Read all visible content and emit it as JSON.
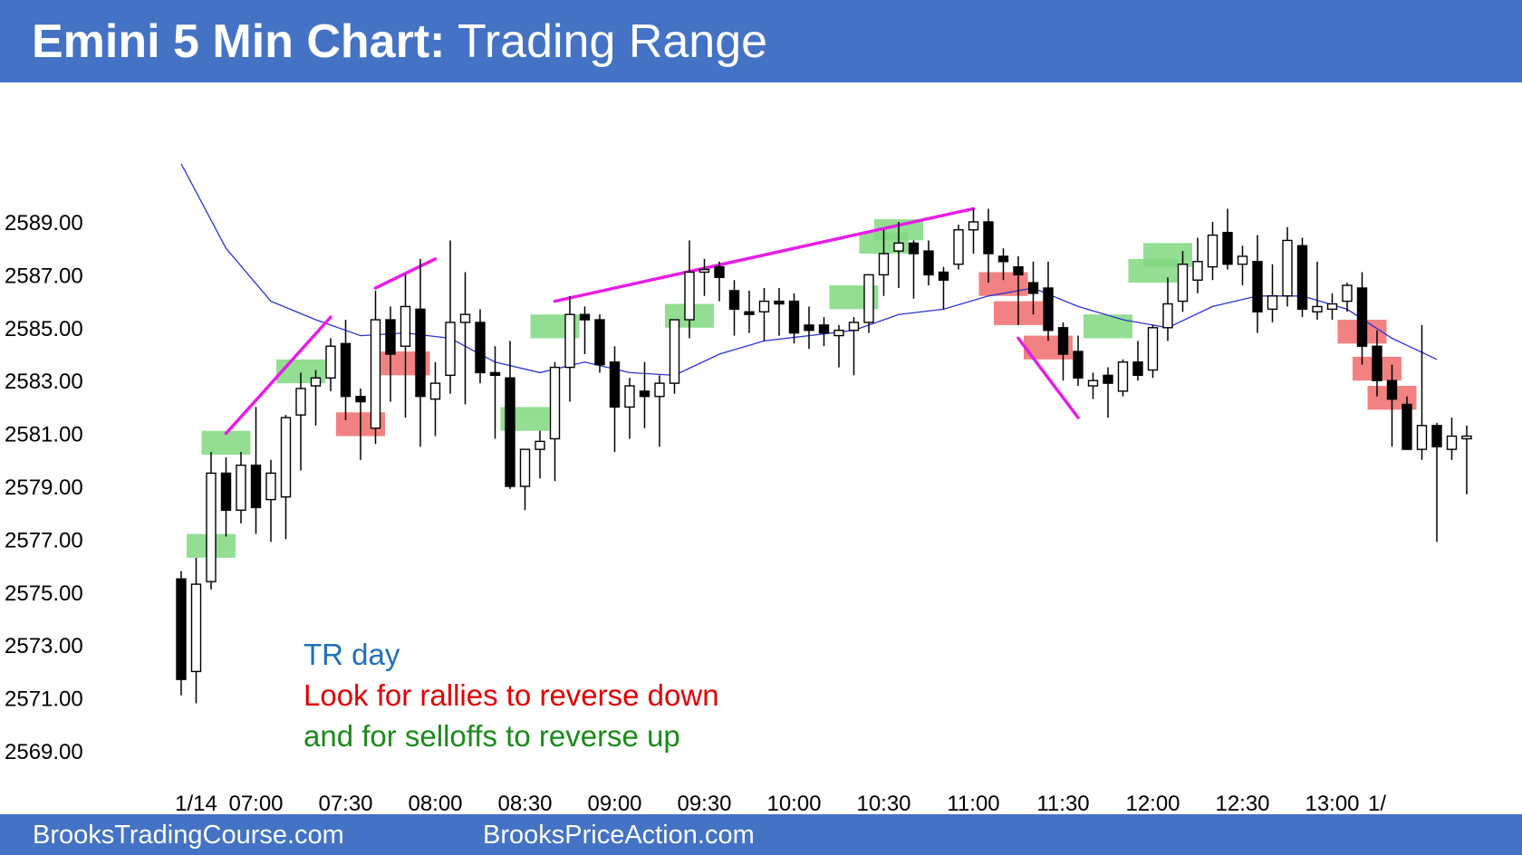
{
  "header": {
    "title_bold": "Emini 5 Min Chart:",
    "title_rest": " Trading Range"
  },
  "footer": {
    "left_link": "BrooksTradingCourse.com",
    "right_link": "BrooksPriceAction.com"
  },
  "notes": {
    "line1": "TR day",
    "line2": "Look for rallies to reverse down",
    "line3": "and for selloffs to reverse up"
  },
  "colors": {
    "header_bg": "#4472c4",
    "bull_body": "#ffffff",
    "bear_body": "#000000",
    "ema": "#2b33d6",
    "trendline": "#e61ee6",
    "green_box": "#80d880",
    "red_box": "#f06c6c",
    "note1": "#1f6fbf",
    "note2": "#e00000",
    "note3": "#1a8a1a"
  },
  "chart_data": {
    "type": "candlestick",
    "title": "Emini 5 Min Chart: Trading Range",
    "ylim": [
      2567.5,
      2591.5
    ],
    "yticks": [
      2589,
      2587,
      2585,
      2583,
      2581,
      2579,
      2577,
      2575,
      2573,
      2571,
      2569
    ],
    "ytick_labels": [
      "2589.00",
      "2587.00",
      "2585.00",
      "2583.00",
      "2581.00",
      "2579.00",
      "2577.00",
      "2575.00",
      "2573.00",
      "2571.00",
      "2569.00"
    ],
    "xtick_labels": [
      "1/14",
      "07:00",
      "07:30",
      "08:00",
      "08:30",
      "09:00",
      "09:30",
      "10:00",
      "10:30",
      "11:00",
      "11:30",
      "12:00",
      "12:30",
      "13:00",
      "1/"
    ],
    "xtick_bars": [
      1,
      5,
      11,
      17,
      23,
      29,
      35,
      41,
      47,
      53,
      59,
      65,
      71,
      77,
      80
    ],
    "grid": false,
    "candles": [
      {
        "o": 2575.5,
        "h": 2575.8,
        "l": 2571.1,
        "c": 2571.7
      },
      {
        "o": 2572.0,
        "h": 2576.3,
        "l": 2570.8,
        "c": 2575.3
      },
      {
        "o": 2575.4,
        "h": 2580.3,
        "l": 2575.1,
        "c": 2579.5
      },
      {
        "o": 2579.5,
        "h": 2580.1,
        "l": 2577.1,
        "c": 2578.1
      },
      {
        "o": 2578.1,
        "h": 2580.3,
        "l": 2577.6,
        "c": 2579.8
      },
      {
        "o": 2579.8,
        "h": 2582.0,
        "l": 2577.2,
        "c": 2578.2
      },
      {
        "o": 2578.5,
        "h": 2580.0,
        "l": 2576.9,
        "c": 2579.5
      },
      {
        "o": 2578.6,
        "h": 2581.7,
        "l": 2577.0,
        "c": 2581.6
      },
      {
        "o": 2581.7,
        "h": 2583.3,
        "l": 2579.6,
        "c": 2582.7
      },
      {
        "o": 2582.8,
        "h": 2583.4,
        "l": 2581.3,
        "c": 2583.1
      },
      {
        "o": 2583.1,
        "h": 2584.6,
        "l": 2582.6,
        "c": 2584.3
      },
      {
        "o": 2584.4,
        "h": 2585.3,
        "l": 2581.5,
        "c": 2582.4
      },
      {
        "o": 2582.4,
        "h": 2582.7,
        "l": 2580.0,
        "c": 2582.2
      },
      {
        "o": 2581.2,
        "h": 2586.4,
        "l": 2580.6,
        "c": 2585.3
      },
      {
        "o": 2585.3,
        "h": 2585.8,
        "l": 2582.2,
        "c": 2584.0
      },
      {
        "o": 2584.3,
        "h": 2587.0,
        "l": 2581.6,
        "c": 2585.8
      },
      {
        "o": 2585.7,
        "h": 2587.6,
        "l": 2580.5,
        "c": 2582.4
      },
      {
        "o": 2582.3,
        "h": 2583.7,
        "l": 2580.9,
        "c": 2582.9
      },
      {
        "o": 2583.2,
        "h": 2588.3,
        "l": 2582.5,
        "c": 2585.2
      },
      {
        "o": 2585.2,
        "h": 2587.1,
        "l": 2582.1,
        "c": 2585.5
      },
      {
        "o": 2585.2,
        "h": 2585.7,
        "l": 2582.9,
        "c": 2583.3
      },
      {
        "o": 2583.3,
        "h": 2584.3,
        "l": 2580.8,
        "c": 2583.2
      },
      {
        "o": 2583.1,
        "h": 2584.5,
        "l": 2578.9,
        "c": 2579.0
      },
      {
        "o": 2579.0,
        "h": 2580.2,
        "l": 2578.1,
        "c": 2580.4
      },
      {
        "o": 2580.4,
        "h": 2581.1,
        "l": 2579.3,
        "c": 2580.7
      },
      {
        "o": 2580.8,
        "h": 2583.7,
        "l": 2579.2,
        "c": 2583.5
      },
      {
        "o": 2583.5,
        "h": 2586.2,
        "l": 2582.2,
        "c": 2585.5
      },
      {
        "o": 2585.5,
        "h": 2585.8,
        "l": 2584.0,
        "c": 2585.3
      },
      {
        "o": 2585.3,
        "h": 2585.5,
        "l": 2583.3,
        "c": 2583.6
      },
      {
        "o": 2583.7,
        "h": 2584.3,
        "l": 2580.3,
        "c": 2582.0
      },
      {
        "o": 2582.0,
        "h": 2583.1,
        "l": 2580.8,
        "c": 2582.8
      },
      {
        "o": 2582.6,
        "h": 2583.7,
        "l": 2581.2,
        "c": 2582.4
      },
      {
        "o": 2582.4,
        "h": 2583.2,
        "l": 2580.5,
        "c": 2582.9
      },
      {
        "o": 2582.9,
        "h": 2585.2,
        "l": 2582.5,
        "c": 2585.3
      },
      {
        "o": 2585.3,
        "h": 2588.3,
        "l": 2584.6,
        "c": 2587.1
      },
      {
        "o": 2587.1,
        "h": 2587.6,
        "l": 2586.2,
        "c": 2587.2
      },
      {
        "o": 2587.3,
        "h": 2587.5,
        "l": 2586.0,
        "c": 2586.9
      },
      {
        "o": 2586.4,
        "h": 2586.8,
        "l": 2584.7,
        "c": 2585.7
      },
      {
        "o": 2585.6,
        "h": 2586.4,
        "l": 2584.8,
        "c": 2585.5
      },
      {
        "o": 2585.6,
        "h": 2586.5,
        "l": 2584.5,
        "c": 2586.0
      },
      {
        "o": 2586.0,
        "h": 2586.5,
        "l": 2584.7,
        "c": 2585.9
      },
      {
        "o": 2586.0,
        "h": 2586.3,
        "l": 2584.4,
        "c": 2584.8
      },
      {
        "o": 2585.1,
        "h": 2585.8,
        "l": 2584.2,
        "c": 2584.9
      },
      {
        "o": 2585.1,
        "h": 2585.4,
        "l": 2584.3,
        "c": 2584.8
      },
      {
        "o": 2584.7,
        "h": 2585.1,
        "l": 2583.5,
        "c": 2584.9
      },
      {
        "o": 2584.9,
        "h": 2585.4,
        "l": 2583.2,
        "c": 2585.2
      },
      {
        "o": 2585.2,
        "h": 2587.0,
        "l": 2584.8,
        "c": 2587.0
      },
      {
        "o": 2587.0,
        "h": 2588.7,
        "l": 2586.2,
        "c": 2587.8
      },
      {
        "o": 2587.9,
        "h": 2589.0,
        "l": 2586.5,
        "c": 2588.2
      },
      {
        "o": 2588.2,
        "h": 2588.3,
        "l": 2586.1,
        "c": 2587.8
      },
      {
        "o": 2587.9,
        "h": 2588.3,
        "l": 2586.6,
        "c": 2587.0
      },
      {
        "o": 2587.1,
        "h": 2587.3,
        "l": 2585.7,
        "c": 2586.8
      },
      {
        "o": 2587.4,
        "h": 2588.9,
        "l": 2587.2,
        "c": 2588.7
      },
      {
        "o": 2588.7,
        "h": 2589.5,
        "l": 2587.8,
        "c": 2589.0
      },
      {
        "o": 2589.0,
        "h": 2589.5,
        "l": 2586.7,
        "c": 2587.8
      },
      {
        "o": 2587.7,
        "h": 2588.0,
        "l": 2586.8,
        "c": 2587.5
      },
      {
        "o": 2587.3,
        "h": 2587.7,
        "l": 2585.1,
        "c": 2587.0
      },
      {
        "o": 2586.7,
        "h": 2587.5,
        "l": 2585.5,
        "c": 2586.3
      },
      {
        "o": 2586.5,
        "h": 2587.5,
        "l": 2584.5,
        "c": 2584.9
      },
      {
        "o": 2585.0,
        "h": 2585.2,
        "l": 2583.0,
        "c": 2584.0
      },
      {
        "o": 2584.1,
        "h": 2584.7,
        "l": 2582.8,
        "c": 2583.1
      },
      {
        "o": 2582.8,
        "h": 2583.3,
        "l": 2582.3,
        "c": 2583.0
      },
      {
        "o": 2583.2,
        "h": 2583.5,
        "l": 2581.6,
        "c": 2582.9
      },
      {
        "o": 2582.6,
        "h": 2583.8,
        "l": 2582.4,
        "c": 2583.7
      },
      {
        "o": 2583.7,
        "h": 2584.5,
        "l": 2583.0,
        "c": 2583.2
      },
      {
        "o": 2583.4,
        "h": 2585.1,
        "l": 2583.1,
        "c": 2585.0
      },
      {
        "o": 2585.0,
        "h": 2586.9,
        "l": 2584.5,
        "c": 2585.9
      },
      {
        "o": 2586.0,
        "h": 2587.9,
        "l": 2585.6,
        "c": 2587.4
      },
      {
        "o": 2586.8,
        "h": 2588.4,
        "l": 2586.3,
        "c": 2587.5
      },
      {
        "o": 2587.3,
        "h": 2589.0,
        "l": 2586.8,
        "c": 2588.5
      },
      {
        "o": 2588.6,
        "h": 2589.5,
        "l": 2587.2,
        "c": 2587.4
      },
      {
        "o": 2587.4,
        "h": 2588.1,
        "l": 2586.6,
        "c": 2587.7
      },
      {
        "o": 2587.5,
        "h": 2588.5,
        "l": 2584.8,
        "c": 2585.6
      },
      {
        "o": 2585.7,
        "h": 2587.4,
        "l": 2585.2,
        "c": 2586.2
      },
      {
        "o": 2586.2,
        "h": 2588.8,
        "l": 2585.8,
        "c": 2588.3
      },
      {
        "o": 2588.1,
        "h": 2588.4,
        "l": 2585.4,
        "c": 2585.7
      },
      {
        "o": 2585.6,
        "h": 2587.5,
        "l": 2585.3,
        "c": 2585.8
      },
      {
        "o": 2585.7,
        "h": 2586.3,
        "l": 2585.3,
        "c": 2585.9
      },
      {
        "o": 2586.0,
        "h": 2586.7,
        "l": 2585.6,
        "c": 2586.6
      },
      {
        "o": 2586.5,
        "h": 2587.1,
        "l": 2583.6,
        "c": 2584.3
      },
      {
        "o": 2584.3,
        "h": 2584.9,
        "l": 2582.4,
        "c": 2583.0
      },
      {
        "o": 2583.0,
        "h": 2583.6,
        "l": 2580.5,
        "c": 2582.3
      },
      {
        "o": 2582.1,
        "h": 2582.4,
        "l": 2580.4,
        "c": 2580.4
      },
      {
        "o": 2580.4,
        "h": 2585.1,
        "l": 2580.0,
        "c": 2581.3
      },
      {
        "o": 2581.3,
        "h": 2581.4,
        "l": 2576.9,
        "c": 2580.5
      },
      {
        "o": 2580.4,
        "h": 2581.6,
        "l": 2580.0,
        "c": 2580.9
      },
      {
        "o": 2580.8,
        "h": 2581.3,
        "l": 2578.7,
        "c": 2580.9
      }
    ],
    "ema20": [
      [
        0,
        2591.2
      ],
      [
        3,
        2588.0
      ],
      [
        6,
        2586.0
      ],
      [
        9,
        2585.3
      ],
      [
        12,
        2584.7
      ],
      [
        15,
        2584.8
      ],
      [
        18,
        2584.6
      ],
      [
        21,
        2583.7
      ],
      [
        24,
        2583.3
      ],
      [
        27,
        2583.7
      ],
      [
        30,
        2583.3
      ],
      [
        33,
        2583.2
      ],
      [
        36,
        2584.0
      ],
      [
        39,
        2584.5
      ],
      [
        42,
        2584.7
      ],
      [
        45,
        2584.9
      ],
      [
        48,
        2585.5
      ],
      [
        51,
        2585.7
      ],
      [
        54,
        2586.2
      ],
      [
        57,
        2586.5
      ],
      [
        60,
        2585.8
      ],
      [
        63,
        2585.3
      ],
      [
        66,
        2585.0
      ],
      [
        69,
        2585.8
      ],
      [
        72,
        2586.2
      ],
      [
        75,
        2586.2
      ],
      [
        78,
        2585.7
      ],
      [
        81,
        2584.6
      ],
      [
        84,
        2583.8
      ]
    ],
    "trendlines": [
      {
        "x1": 3,
        "y1": 2581.0,
        "x2": 10,
        "y2": 2585.4
      },
      {
        "x1": 13,
        "y1": 2586.5,
        "x2": 17,
        "y2": 2587.6
      },
      {
        "x1": 25,
        "y1": 2586.0,
        "x2": 53,
        "y2": 2589.5
      },
      {
        "x1": 56,
        "y1": 2584.6,
        "x2": 60,
        "y2": 2581.6
      }
    ],
    "green_boxes": [
      {
        "bar": 2,
        "low": 2576.3,
        "high": 2577.2
      },
      {
        "bar": 3,
        "low": 2580.2,
        "high": 2581.1
      },
      {
        "bar": 8,
        "low": 2582.9,
        "high": 2583.8
      },
      {
        "bar": 23,
        "low": 2581.1,
        "high": 2582.0
      },
      {
        "bar": 25,
        "low": 2584.6,
        "high": 2585.5
      },
      {
        "bar": 34,
        "low": 2585.0,
        "high": 2585.9
      },
      {
        "bar": 45,
        "low": 2585.7,
        "high": 2586.6
      },
      {
        "bar": 47,
        "low": 2587.8,
        "high": 2588.6
      },
      {
        "bar": 48,
        "low": 2588.3,
        "high": 2589.1
      },
      {
        "bar": 62,
        "low": 2584.6,
        "high": 2585.5
      },
      {
        "bar": 65,
        "low": 2586.7,
        "high": 2587.6
      },
      {
        "bar": 66,
        "low": 2587.3,
        "high": 2588.2
      }
    ],
    "red_boxes": [
      {
        "bar": 12,
        "low": 2580.9,
        "high": 2581.8
      },
      {
        "bar": 15,
        "low": 2583.2,
        "high": 2584.1
      },
      {
        "bar": 55,
        "low": 2586.2,
        "high": 2587.1
      },
      {
        "bar": 56,
        "low": 2585.1,
        "high": 2586.0
      },
      {
        "bar": 58,
        "low": 2583.8,
        "high": 2584.7
      },
      {
        "bar": 79,
        "low": 2584.4,
        "high": 2585.3
      },
      {
        "bar": 80,
        "low": 2583.0,
        "high": 2583.9
      },
      {
        "bar": 81,
        "low": 2581.9,
        "high": 2582.8
      }
    ]
  }
}
